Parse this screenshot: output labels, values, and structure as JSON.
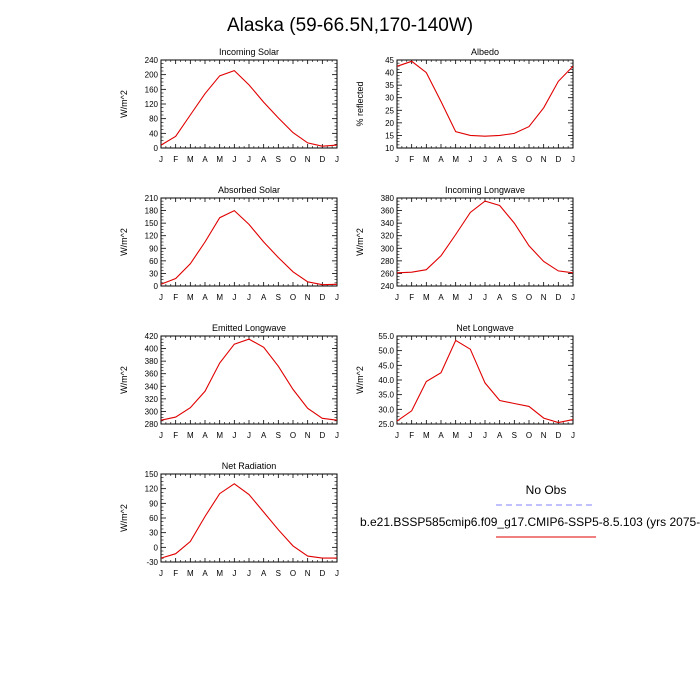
{
  "figure": {
    "title": "Alaska (59-66.5N,170-140W)"
  },
  "legend": {
    "obs_label": "No Obs",
    "model_label": "b.e21.BSSP585cmip6.f09_g17.CMIP6-SSP5-8.5.103 (yrs 2075-",
    "obs_color": "#8080ff",
    "model_color": "#e00000"
  },
  "chart_data": [
    {
      "type": "line",
      "title": "Incoming Solar",
      "ylabel": "W/m^2",
      "categories": [
        "J",
        "F",
        "M",
        "A",
        "M",
        "J",
        "J",
        "A",
        "S",
        "O",
        "N",
        "D",
        "J"
      ],
      "ylim": [
        0,
        240
      ],
      "yticks": [
        0,
        40,
        80,
        120,
        160,
        200,
        240
      ],
      "series": [
        {
          "values": [
            8,
            32,
            90,
            148,
            197,
            211,
            172,
            125,
            82,
            42,
            14,
            5,
            8
          ]
        }
      ]
    },
    {
      "type": "line",
      "title": "Albedo",
      "ylabel": "% reflected",
      "categories": [
        "J",
        "F",
        "M",
        "A",
        "M",
        "J",
        "J",
        "A",
        "S",
        "O",
        "N",
        "D",
        "J"
      ],
      "ylim": [
        10,
        45
      ],
      "yticks": [
        10,
        15,
        20,
        25,
        30,
        35,
        40,
        45
      ],
      "series": [
        {
          "values": [
            42.5,
            44.5,
            40.0,
            28.5,
            16.5,
            15.0,
            14.7,
            15.0,
            15.8,
            18.5,
            26.0,
            36.5,
            42.5
          ]
        }
      ]
    },
    {
      "type": "line",
      "title": "Absorbed Solar",
      "ylabel": "W/m^2",
      "categories": [
        "J",
        "F",
        "M",
        "A",
        "M",
        "J",
        "J",
        "A",
        "S",
        "O",
        "N",
        "D",
        "J"
      ],
      "ylim": [
        0,
        210
      ],
      "yticks": [
        0,
        30,
        60,
        90,
        120,
        150,
        180,
        210
      ],
      "series": [
        {
          "values": [
            4,
            18,
            53,
            105,
            163,
            180,
            147,
            105,
            68,
            34,
            10,
            3,
            4
          ]
        }
      ]
    },
    {
      "type": "line",
      "title": "Incoming Longwave",
      "ylabel": "W/m^2",
      "categories": [
        "J",
        "F",
        "M",
        "A",
        "M",
        "J",
        "J",
        "A",
        "S",
        "O",
        "N",
        "D",
        "J"
      ],
      "ylim": [
        240,
        380
      ],
      "yticks": [
        240,
        260,
        280,
        300,
        320,
        340,
        360,
        380
      ],
      "series": [
        {
          "values": [
            261,
            262,
            266,
            288,
            322,
            357,
            375,
            368,
            340,
            304,
            279,
            264,
            261
          ]
        }
      ]
    },
    {
      "type": "line",
      "title": "Emitted Longwave",
      "ylabel": "W/m^2",
      "categories": [
        "J",
        "F",
        "M",
        "A",
        "M",
        "J",
        "J",
        "A",
        "S",
        "O",
        "N",
        "D",
        "J"
      ],
      "ylim": [
        280,
        420
      ],
      "yticks": [
        280,
        300,
        320,
        340,
        360,
        380,
        400,
        420
      ],
      "series": [
        {
          "values": [
            286,
            291,
            306,
            332,
            377,
            407,
            415,
            402,
            372,
            335,
            305,
            289,
            286
          ]
        }
      ]
    },
    {
      "type": "line",
      "title": "Net Longwave",
      "ylabel": "W/m^2",
      "categories": [
        "J",
        "F",
        "M",
        "A",
        "M",
        "J",
        "J",
        "A",
        "S",
        "O",
        "N",
        "D",
        "J"
      ],
      "ylim": [
        25,
        55
      ],
      "yticks": [
        25.0,
        30.0,
        35.0,
        40.0,
        45.0,
        50.0,
        55.0
      ],
      "series": [
        {
          "values": [
            26.0,
            29.5,
            39.5,
            42.5,
            53.5,
            50.5,
            39.0,
            33.0,
            32.0,
            31.0,
            27.0,
            25.5,
            26.5
          ]
        }
      ]
    },
    {
      "type": "line",
      "title": "Net Radiation",
      "ylabel": "W/m^2",
      "categories": [
        "J",
        "F",
        "M",
        "A",
        "M",
        "J",
        "J",
        "A",
        "S",
        "O",
        "N",
        "D",
        "J"
      ],
      "ylim": [
        -30,
        150
      ],
      "yticks": [
        -30,
        0,
        30,
        60,
        90,
        120,
        150
      ],
      "series": [
        {
          "values": [
            -22,
            -13,
            12,
            63,
            110,
            130,
            108,
            72,
            36,
            3,
            -18,
            -22,
            -22
          ]
        }
      ]
    }
  ]
}
